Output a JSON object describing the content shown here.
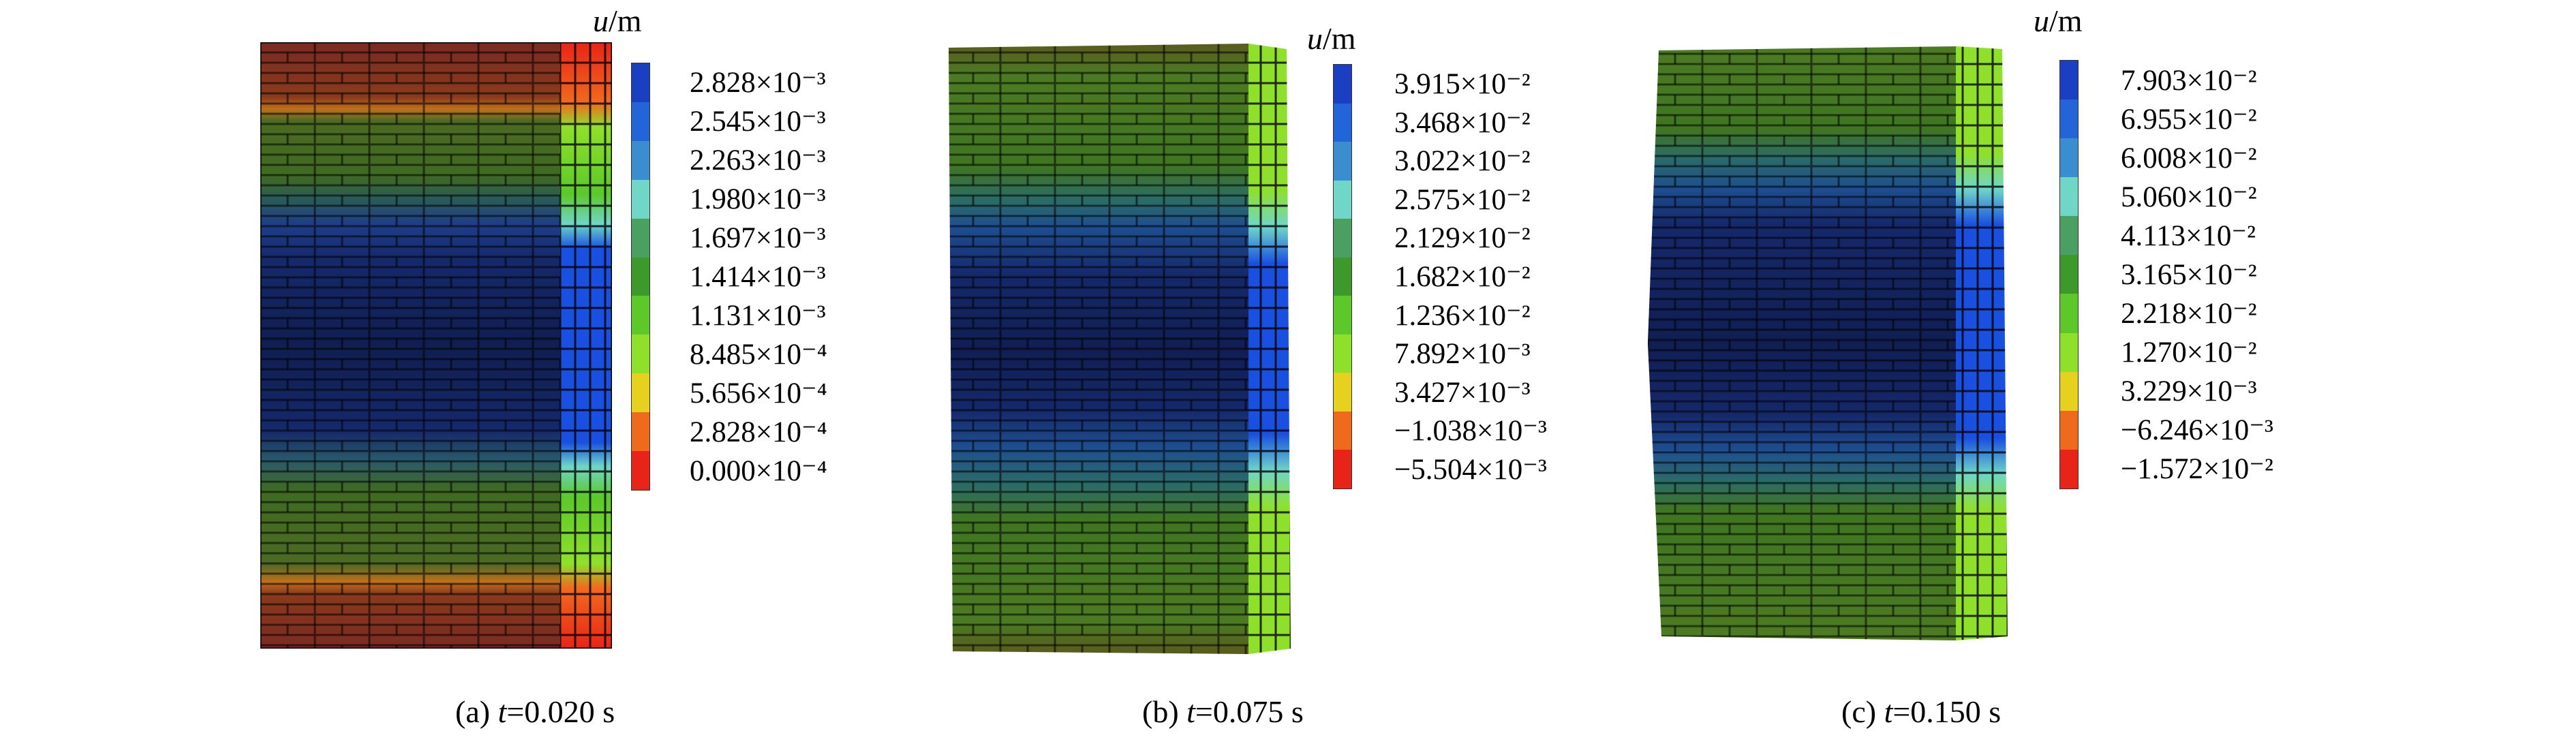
{
  "panels": [
    {
      "id": "a",
      "caption_prefix": "(a) ",
      "caption_var": "t",
      "caption_value": "=0.020 s",
      "unit_var": "u",
      "unit_suffix": "/m",
      "legend": [
        "2.828×10⁻³",
        "2.545×10⁻³",
        "2.263×10⁻³",
        "1.980×10⁻³",
        "1.697×10⁻³",
        "1.414×10⁻³",
        "1.131×10⁻³",
        "8.485×10⁻⁴",
        "5.656×10⁻⁴",
        "2.828×10⁻⁴",
        "0.000×10⁻⁴"
      ]
    },
    {
      "id": "b",
      "caption_prefix": "(b) ",
      "caption_var": "t",
      "caption_value": "=0.075 s",
      "unit_var": "u",
      "unit_suffix": "/m",
      "legend": [
        "3.915×10⁻²",
        "3.468×10⁻²",
        "3.022×10⁻²",
        "2.575×10⁻²",
        "2.129×10⁻²",
        "1.682×10⁻²",
        "1.236×10⁻²",
        "7.892×10⁻³",
        "3.427×10⁻³",
        "−1.038×10⁻³",
        "−5.504×10⁻³"
      ]
    },
    {
      "id": "c",
      "caption_prefix": "(c) ",
      "caption_var": "t",
      "caption_value": "=0.150 s",
      "unit_var": "u",
      "unit_suffix": "/m",
      "legend": [
        "7.903×10⁻²",
        "6.955×10⁻²",
        "6.008×10⁻²",
        "5.060×10⁻²",
        "4.113×10⁻²",
        "3.165×10⁻²",
        "2.218×10⁻²",
        "1.270×10⁻²",
        "3.229×10⁻³",
        "−6.246×10⁻³",
        "−1.572×10⁻²"
      ]
    }
  ],
  "colorbar_colors": [
    "#1a3fc2",
    "#2364d8",
    "#3a8ed0",
    "#6fd6c8",
    "#4aa060",
    "#3d9a2a",
    "#5cc82a",
    "#8fe02a",
    "#e6d21e",
    "#f06a1e",
    "#e82418"
  ]
}
